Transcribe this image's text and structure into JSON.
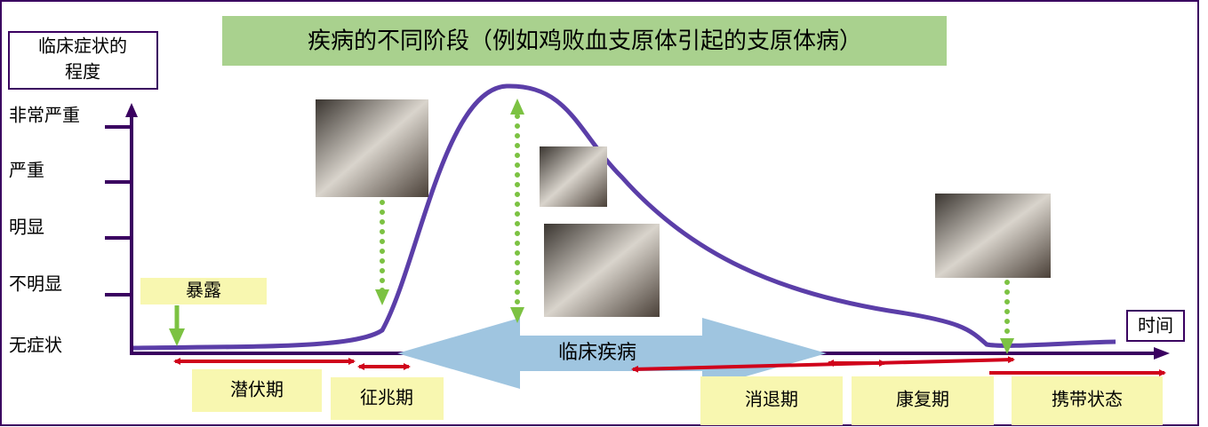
{
  "title": "疾病的不同阶段（例如鸡败血支原体引起的支原体病）",
  "y_axis": {
    "title_lines": [
      "临床症状的",
      "程度"
    ],
    "levels": [
      "非常严重",
      "严重",
      "明显",
      "不明显",
      "无症状"
    ]
  },
  "x_axis": {
    "label": "时间"
  },
  "events": {
    "exposure": "暴露",
    "clinical_disease": "临床疾病"
  },
  "stages": [
    "潜伏期",
    "征兆期",
    "消退期",
    "康复期",
    "携带状态"
  ]
}
